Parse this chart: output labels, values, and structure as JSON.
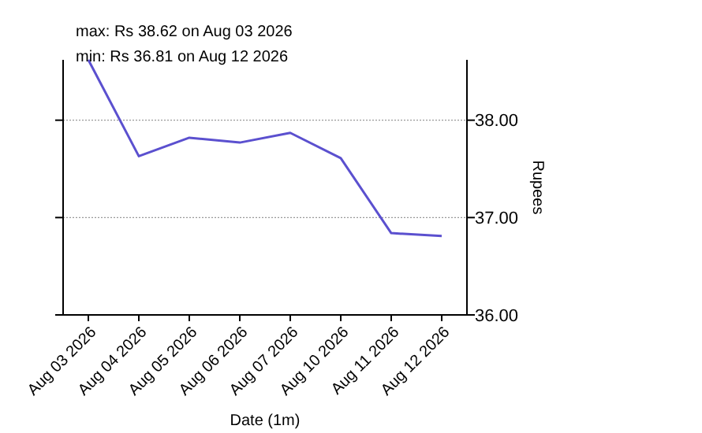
{
  "chart_data": {
    "type": "line",
    "xlabel": "Date (1m)",
    "ylabel": "Rupees",
    "categories": [
      "Aug 03 2026",
      "Aug 04 2026",
      "Aug 05 2026",
      "Aug 06 2026",
      "Aug 07 2026",
      "Aug 10 2026",
      "Aug 11 2026",
      "Aug 12 2026"
    ],
    "series": [
      {
        "color": "#5b50cf",
        "values": [
          38.62,
          37.63,
          37.82,
          37.77,
          37.87,
          37.61,
          36.84,
          36.81
        ]
      }
    ],
    "ylim": [
      36,
      38.62
    ],
    "yticks": [
      {
        "value": 36,
        "label": "36.00"
      },
      {
        "value": 37,
        "label": "37.00"
      },
      {
        "value": 38,
        "label": "38.00"
      }
    ],
    "grid": "y",
    "marker": "none",
    "line_style": "solid",
    "annotations": [
      "max: Rs 38.62 on Aug 03 2026",
      "min: Rs 36.81 on Aug 12 2026"
    ]
  }
}
